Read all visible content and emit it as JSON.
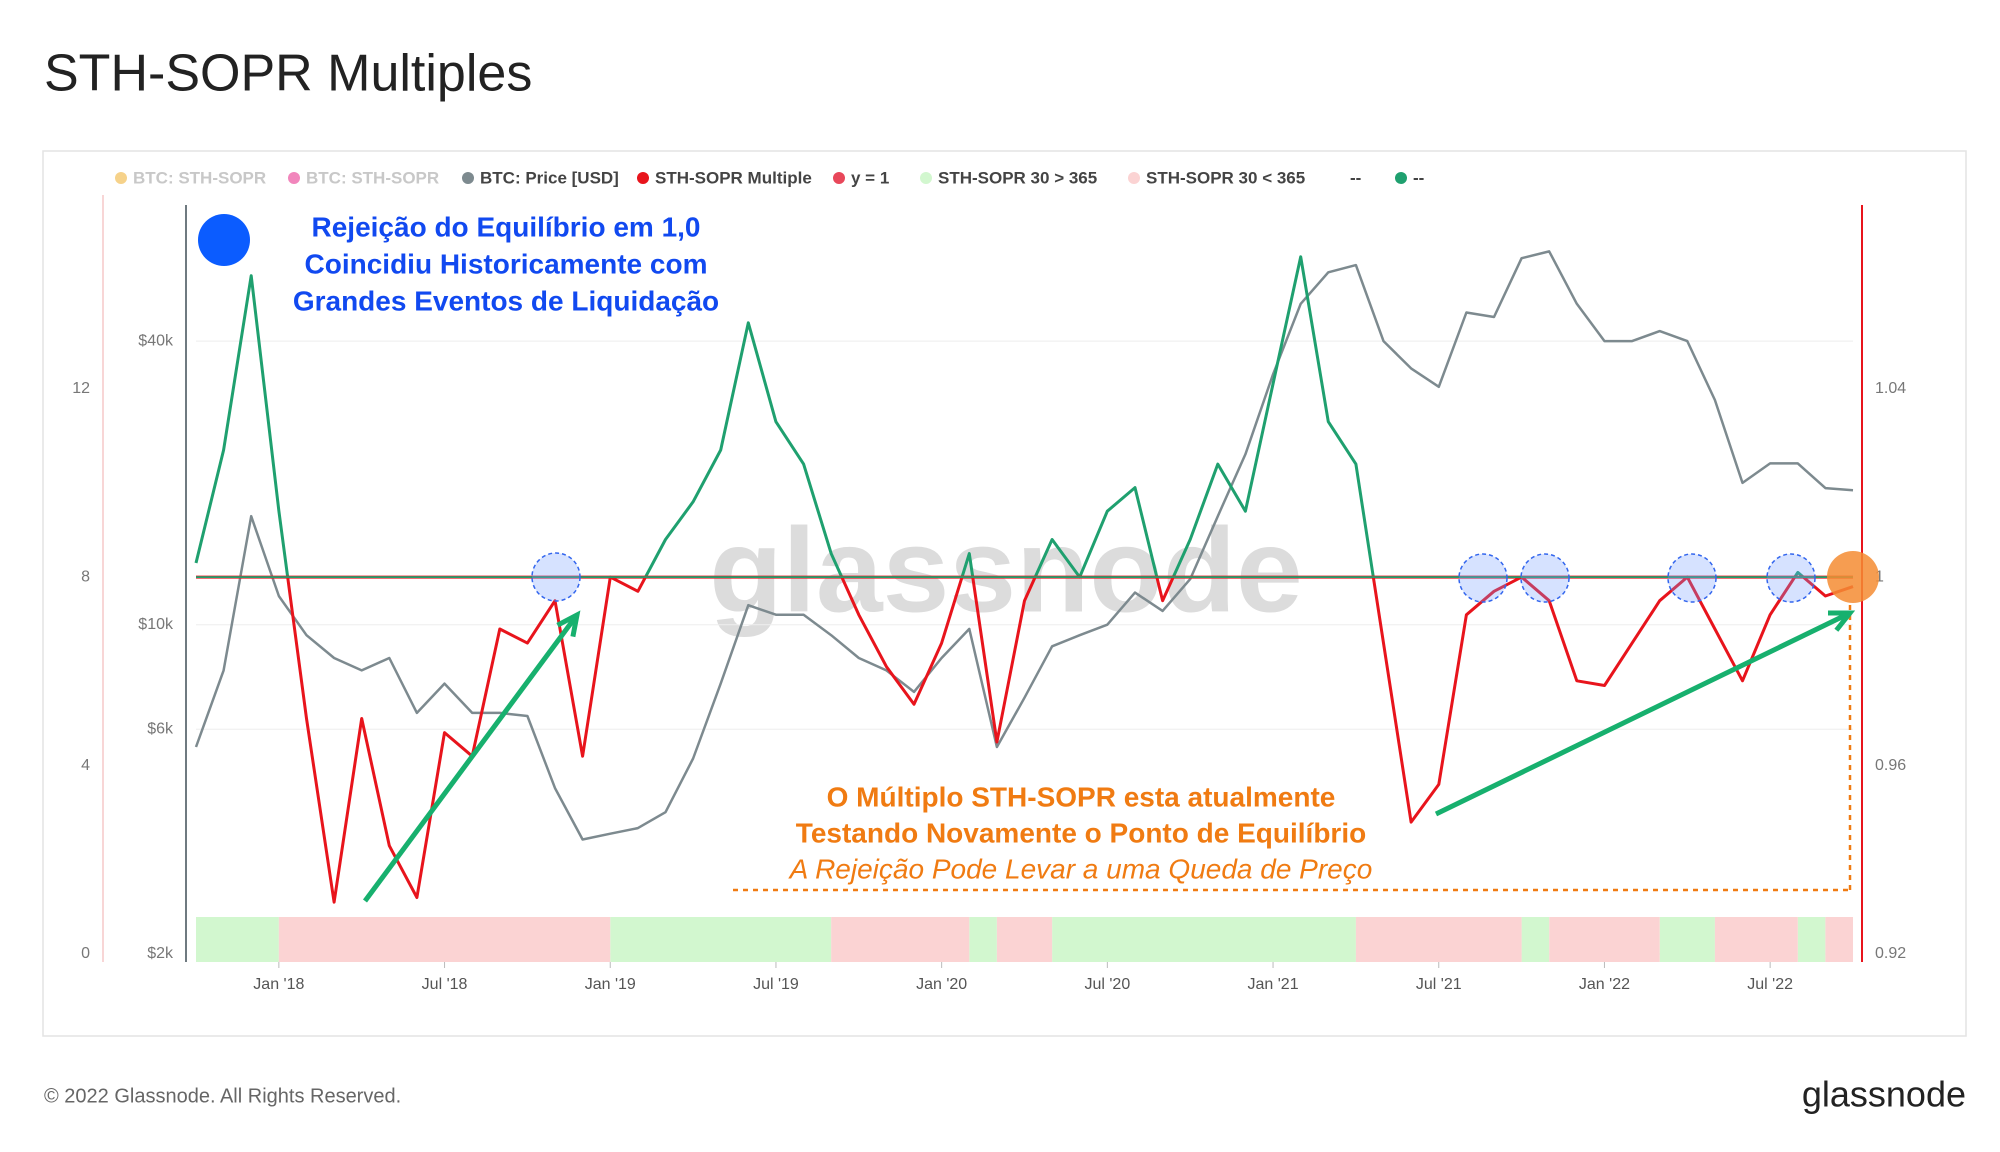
{
  "chart_data": {
    "type": "line",
    "title": "STH-SOPR Multiples",
    "footer": "© 2022 Glassnode. All Rights Reserved.",
    "brand": "glassnode",
    "watermark": "glassnode",
    "legend": [
      {
        "name": "BTC: STH-SOPR",
        "color": "#f0b43c",
        "faded": true
      },
      {
        "name": "BTC: STH-SOPR",
        "color": "#e8368f",
        "faded": true
      },
      {
        "name": "BTC: Price [USD]",
        "color": "#7d8a8f",
        "faded": false
      },
      {
        "name": "STH-SOPR Multiple",
        "color": "#e8141c",
        "faded": false
      },
      {
        "name": "y = 1",
        "color": "#e8475a",
        "faded": false
      },
      {
        "name": "STH-SOPR 30 > 365",
        "color": "#d2f7cf",
        "faded": false
      },
      {
        "name": "STH-SOPR 30 < 365",
        "color": "#fbd3d3",
        "faded": false
      },
      {
        "name": "--",
        "faded": false
      },
      {
        "name": "--",
        "color": "#1fa06f",
        "faded": false
      }
    ],
    "xlim": [
      "2017-10",
      "2022-10"
    ],
    "xticks": [
      {
        "value": "2018-01",
        "label": "Jan '18"
      },
      {
        "value": "2018-07",
        "label": "Jul '18"
      },
      {
        "value": "2019-01",
        "label": "Jan '19"
      },
      {
        "value": "2019-07",
        "label": "Jul '19"
      },
      {
        "value": "2020-01",
        "label": "Jan '20"
      },
      {
        "value": "2020-07",
        "label": "Jul '20"
      },
      {
        "value": "2021-01",
        "label": "Jan '21"
      },
      {
        "value": "2021-07",
        "label": "Jul '21"
      },
      {
        "value": "2022-01",
        "label": "Jan '22"
      },
      {
        "value": "2022-07",
        "label": "Jul '22"
      }
    ],
    "ylim": [
      0,
      15.9
    ],
    "yticks": [
      0,
      4,
      8,
      12
    ],
    "y2lim": [
      0.92,
      1.079
    ],
    "y2ticks": [
      0.92,
      0.96,
      1,
      1.04
    ],
    "y3lim": [
      2000,
      77800
    ],
    "y3log": true,
    "y3ticks": [
      {
        "value": 2000,
        "label": "$2k"
      },
      {
        "value": 6000,
        "label": "$6k"
      },
      {
        "value": 10000,
        "label": "$10k"
      },
      {
        "value": 40000,
        "label": "$40k"
      }
    ],
    "x": [
      "2017-10",
      "2017-11",
      "2017-12",
      "2018-01",
      "2018-02",
      "2018-03",
      "2018-04",
      "2018-05",
      "2018-06",
      "2018-07",
      "2018-08",
      "2018-09",
      "2018-10",
      "2018-11",
      "2018-12",
      "2019-01",
      "2019-02",
      "2019-03",
      "2019-04",
      "2019-05",
      "2019-06",
      "2019-07",
      "2019-08",
      "2019-09",
      "2019-10",
      "2019-11",
      "2019-12",
      "2020-01",
      "2020-02",
      "2020-03",
      "2020-04",
      "2020-05",
      "2020-06",
      "2020-07",
      "2020-08",
      "2020-09",
      "2020-10",
      "2020-11",
      "2020-12",
      "2021-01",
      "2021-02",
      "2021-03",
      "2021-04",
      "2021-05",
      "2021-06",
      "2021-07",
      "2021-08",
      "2021-09",
      "2021-10",
      "2021-11",
      "2021-12",
      "2022-01",
      "2022-02",
      "2022-03",
      "2022-04",
      "2022-05",
      "2022-06",
      "2022-07",
      "2022-08",
      "2022-09",
      "2022-10"
    ],
    "series": [
      {
        "axis": "y3",
        "color": "#7d8a8f",
        "values": [
          5500,
          8000,
          17000,
          11500,
          9500,
          8500,
          8000,
          8500,
          6500,
          7500,
          6500,
          6500,
          6400,
          4500,
          3500,
          3600,
          3700,
          4000,
          5200,
          7500,
          11000,
          10500,
          10500,
          9500,
          8500,
          8000,
          7200,
          8500,
          9800,
          5500,
          7000,
          9000,
          9500,
          10000,
          11700,
          10700,
          12500,
          17000,
          23000,
          34000,
          48000,
          56000,
          58000,
          40000,
          35000,
          32000,
          46000,
          45000,
          60000,
          62000,
          48000,
          40000,
          40000,
          42000,
          40000,
          30000,
          20000,
          22000,
          22000,
          19500,
          19300
        ]
      },
      {
        "axis": "y2",
        "color": "#e8141c",
        "color_above": "#1fa06f",
        "values": [
          1.003,
          1.027,
          1.064,
          1.014,
          0.97,
          0.931,
          0.97,
          0.943,
          0.932,
          0.967,
          0.962,
          0.989,
          0.986,
          0.995,
          0.962,
          1.0,
          0.997,
          1.008,
          1.016,
          1.027,
          1.054,
          1.033,
          1.024,
          1.005,
          0.992,
          0.981,
          0.973,
          0.986,
          1.005,
          0.965,
          0.995,
          1.008,
          1.0,
          1.014,
          1.019,
          0.995,
          1.008,
          1.024,
          1.014,
          1.041,
          1.068,
          1.033,
          1.024,
          0.986,
          0.948,
          0.956,
          0.992,
          0.997,
          1.0,
          0.995,
          0.978,
          0.977,
          0.986,
          0.995,
          1.0,
          0.989,
          0.978,
          0.992,
          1.001,
          0.996,
          0.998
        ]
      }
    ],
    "reference_lines": [
      {
        "value": 1,
        "axis": "y2",
        "color": "#e8141c"
      },
      {
        "value": 1,
        "axis": "y2",
        "color": "#1fa06f"
      }
    ],
    "bands": [
      {
        "color": "#d2f7cf",
        "periods": [
          [
            "2017-10",
            "2018-01"
          ],
          [
            "2019-01",
            "2019-09"
          ],
          [
            "2020-02",
            "2020-03"
          ],
          [
            "2020-05",
            "2021-04"
          ],
          [
            "2021-10",
            "2021-11"
          ],
          [
            "2022-03",
            "2022-05"
          ],
          [
            "2022-08",
            "2022-09"
          ]
        ]
      },
      {
        "color": "#fbd3d3",
        "periods": [
          [
            "2018-01",
            "2019-01"
          ],
          [
            "2019-09",
            "2020-02"
          ],
          [
            "2020-03",
            "2020-05"
          ],
          [
            "2021-04",
            "2021-10"
          ],
          [
            "2021-11",
            "2022-03"
          ],
          [
            "2022-05",
            "2022-08"
          ],
          [
            "2022-09",
            "2022-10"
          ]
        ]
      }
    ],
    "annotations": {
      "blue": [
        "Rejeição do Equilíbrio em 1,0",
        "Coincidiu Historicamente com",
        "Grandes Eventos de Liquidação"
      ],
      "orange": [
        "O Múltiplo STH-SOPR esta atualmente",
        "Testando Novamente o Ponto de Equilíbrio"
      ],
      "orange_italic": "A Rejeição Pode Levar a uma Queda de Preço"
    }
  }
}
